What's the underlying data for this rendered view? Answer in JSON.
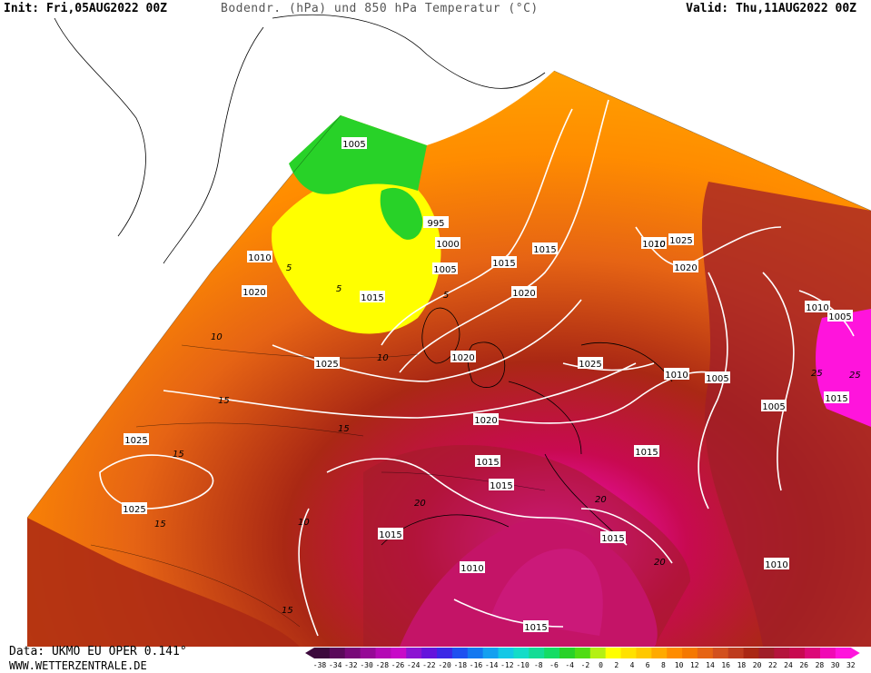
{
  "header": {
    "init": "Init: Fri,05AUG2022 00Z",
    "title": "Bodendr. (hPa) und 850 hPa Temperatur (°C)",
    "valid": "Valid: Thu,11AUG2022 00Z"
  },
  "footer": {
    "source": "Data: UKMO EU OPER 0.141°",
    "site": "WWW.WETTERZENTRALE.DE"
  },
  "legend": {
    "ticks": [
      "-38",
      "-34",
      "-32",
      "-30",
      "-28",
      "-26",
      "-24",
      "-22",
      "-20",
      "-18",
      "-16",
      "-14",
      "-12",
      "-10",
      "-8",
      "-6",
      "-4",
      "-2",
      "0",
      "2",
      "4",
      "6",
      "8",
      "10",
      "12",
      "14",
      "16",
      "18",
      "20",
      "22",
      "24",
      "26",
      "28",
      "30",
      "32"
    ],
    "colors": [
      "#3c0a3c",
      "#5a0a5a",
      "#780a78",
      "#960a96",
      "#b40ab4",
      "#c80ac8",
      "#8c14d2",
      "#6414dc",
      "#3c28e6",
      "#1e50f0",
      "#1478f0",
      "#14a0f0",
      "#14c8e6",
      "#14dcc8",
      "#14dc96",
      "#14dc64",
      "#28d228",
      "#50dc14",
      "#b4f014",
      "#ffff00",
      "#ffe100",
      "#ffc800",
      "#ffaa00",
      "#ff8c00",
      "#f57800",
      "#e66414",
      "#d2501e",
      "#be3c1e",
      "#aa2814",
      "#a01e28",
      "#b4143c",
      "#c80a50",
      "#dc0a78",
      "#f00ab4",
      "#ff14dc"
    ]
  },
  "pressure_labels": [
    "1005",
    "995",
    "1000",
    "1005",
    "1010",
    "1020",
    "1015",
    "1015",
    "1010",
    "1020",
    "1025",
    "1025",
    "1020",
    "1010",
    "1005",
    "1025",
    "1025",
    "1025",
    "1020",
    "1015",
    "1010",
    "1005",
    "1005",
    "1015",
    "1015",
    "1020",
    "1015",
    "1015",
    "1015",
    "1015",
    "1010",
    "1010",
    "1015"
  ],
  "temp_labels": [
    "5",
    "5",
    "5",
    "10",
    "10",
    "10",
    "15",
    "15",
    "15",
    "15",
    "20",
    "20",
    "20",
    "25",
    "25",
    "15",
    "10"
  ],
  "colors": {
    "ocean_white": "#ffffff",
    "coast": "#000000",
    "isobar": "#ffffff"
  }
}
